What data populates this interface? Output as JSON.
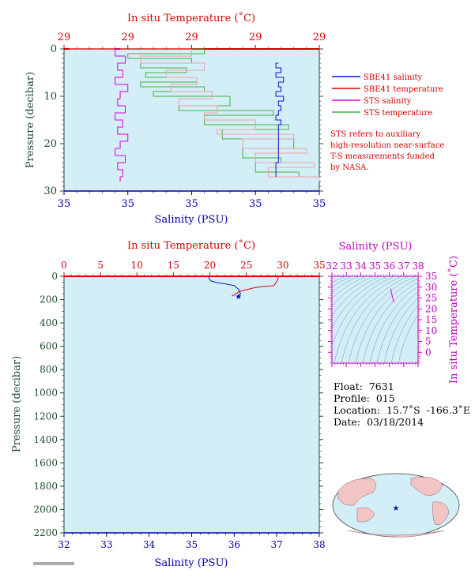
{
  "colors": {
    "plot_bg": "#d4eef8",
    "sbe_salinity": "#0018c8",
    "sbe_temperature": "#e00000",
    "sts_salinity": "#e000e0",
    "sts_temperature": "#40b040",
    "sts_temperature_light": "#f0a0a0",
    "red_axis": "#d40000",
    "blue_axis": "#0000a8",
    "pressure_axis": "#1c4d2a",
    "magenta_axis": "#c000c0"
  },
  "top_panel": {
    "title_temp": "In situ Temperature (˚C)",
    "ylabel": "Pressure (decibar)",
    "xlabel": "Salinity (PSU)",
    "temp_ticks": [
      "29",
      "29",
      "29",
      "29",
      "29"
    ],
    "sal_ticks": [
      "35",
      "35",
      "35",
      "35",
      "35"
    ],
    "pressure_ticks": [
      "0",
      "10",
      "20",
      "30"
    ]
  },
  "legend": {
    "items": [
      {
        "label": "SBE41 salinity",
        "color": "#0018c8"
      },
      {
        "label": "SBE41 temperature",
        "color": "#e00000"
      },
      {
        "label": "STS salinity",
        "color": "#e000e0"
      },
      {
        "label": "STS temperature",
        "color": "#40b040"
      }
    ],
    "note": [
      "STS refers to auxiliary",
      "high-resolution near-surface",
      "T-S measurements funded",
      "by NASA."
    ]
  },
  "bottom_panel": {
    "title_temp": "In situ Temperature (˚C)",
    "ylabel": "Pressure (decibar)",
    "xlabel": "Salinity (PSU)",
    "temp_ticks": [
      "0",
      "5",
      "10",
      "15",
      "20",
      "25",
      "30",
      "35"
    ],
    "sal_ticks": [
      "32",
      "33",
      "34",
      "35",
      "36",
      "37",
      "38"
    ],
    "pressure_ticks": [
      "0",
      "200",
      "400",
      "600",
      "800",
      "1000",
      "1200",
      "1400",
      "1600",
      "1800",
      "2000",
      "2200"
    ]
  },
  "ts_panel": {
    "title": "Salinity (PSU)",
    "ylabel": "In situ Temperature (˚C)",
    "sal_ticks": [
      "32",
      "33",
      "34",
      "35",
      "36",
      "37",
      "38"
    ],
    "temp_ticks": [
      "0",
      "5",
      "10",
      "15",
      "20",
      "25",
      "30",
      "35"
    ]
  },
  "info": {
    "float_label": "Float:",
    "float_value": "7631",
    "profile_label": "Profile:",
    "profile_value": "015",
    "location_label": "Location:",
    "location_value": "15.7˚S  -166.3˚E",
    "date_label": "Date:",
    "date_value": "03/18/2014"
  },
  "chart_data": [
    {
      "type": "line",
      "panel": "near-surface profile (top)",
      "title": "In situ Temperature (˚C)",
      "xlabel": "Salinity (PSU)",
      "ylabel": "Pressure (decibar)",
      "ylim": [
        0,
        30
      ],
      "series": [
        {
          "name": "SBE41 salinity",
          "x_fraction": [
            0.84,
            0.83,
            0.85,
            0.83,
            0.86,
            0.84,
            0.85,
            0.83,
            0.86,
            0.84,
            0.85,
            0.84,
            0.83,
            0.85,
            0.84,
            0.84,
            0.84,
            0.84,
            0.84,
            0.83
          ],
          "pressure": [
            3,
            4,
            5,
            6,
            7,
            8,
            9,
            10,
            11,
            12,
            13,
            14,
            15,
            16,
            17,
            18,
            19,
            20,
            24,
            27
          ]
        },
        {
          "name": "STS salinity",
          "x_fraction": [
            0.22,
            0.2,
            0.24,
            0.21,
            0.23,
            0.2,
            0.25,
            0.22,
            0.21,
            0.24,
            0.2,
            0.23,
            0.21,
            0.25,
            0.22,
            0.2,
            0.24,
            0.21,
            0.23,
            0.22
          ],
          "pressure": [
            0,
            1.5,
            3,
            4.5,
            6,
            7.5,
            9,
            10.5,
            12,
            13.5,
            15,
            16.5,
            18,
            19.5,
            21,
            22.5,
            24,
            25.5,
            27,
            28
          ]
        },
        {
          "name": "STS temperature",
          "x_fraction": [
            0.02,
            0.55,
            0.25,
            0.5,
            0.3,
            0.48,
            0.32,
            0.52,
            0.3,
            0.55,
            0.35,
            0.65,
            0.45,
            0.82,
            0.55,
            0.88,
            0.62,
            0.9,
            0.7,
            0.85,
            0.75,
            0.92
          ],
          "pressure": [
            0,
            1,
            2,
            3,
            4,
            5,
            6,
            7,
            8,
            9,
            10,
            12,
            13,
            14,
            16,
            17,
            19,
            21,
            23,
            24,
            26,
            27
          ]
        },
        {
          "name": "SBE41 temperature",
          "x_fraction": [
            0.02,
            0.5,
            0.3,
            0.55,
            0.4,
            0.52,
            0.42,
            0.58,
            0.45,
            0.6,
            0.55,
            0.75,
            0.6,
            0.9,
            0.7,
            0.95,
            0.75,
            0.98,
            0.8,
            1.0
          ],
          "pressure": [
            0,
            1.5,
            3,
            4.5,
            6,
            7.5,
            9,
            10.5,
            12,
            13.5,
            15,
            17,
            18,
            19,
            21,
            22,
            24,
            25,
            27,
            28
          ]
        }
      ]
    },
    {
      "type": "line",
      "panel": "full profile (bottom)",
      "title": "In situ Temperature (˚C)",
      "xlabel": "Salinity (PSU)",
      "ylabel": "Pressure (decibar)",
      "xlim_salinity": [
        32,
        38
      ],
      "xlim_temperature": [
        0,
        35
      ],
      "ylim": [
        0,
        2200
      ],
      "series": [
        {
          "name": "SBE41 salinity",
          "salinity": [
            35.4,
            35.4,
            35.45,
            35.6,
            35.8,
            36.0,
            36.1,
            36.15,
            36.1
          ],
          "pressure": [
            0,
            15,
            40,
            55,
            65,
            80,
            110,
            150,
            170
          ]
        },
        {
          "name": "SBE41 temperature",
          "temperature": [
            29.4,
            29.3,
            29.0,
            28.8,
            27.0,
            26.0,
            24.0,
            23.3,
            23.0
          ],
          "pressure": [
            0,
            30,
            60,
            80,
            90,
            100,
            130,
            160,
            170
          ]
        }
      ]
    },
    {
      "type": "scatter",
      "panel": "T-S diagram",
      "title": "Salinity (PSU)",
      "ylabel": "In situ Temperature (˚C)",
      "xlim": [
        32,
        38
      ],
      "ylim": [
        -5,
        35
      ],
      "series": [
        {
          "name": "T-S",
          "salinity": [
            36.1,
            36.12,
            36.15,
            36.2,
            36.25,
            36.3,
            36.32
          ],
          "temperature": [
            29.3,
            28.5,
            27.0,
            26.0,
            24.5,
            23.5,
            23.0
          ]
        }
      ]
    }
  ]
}
